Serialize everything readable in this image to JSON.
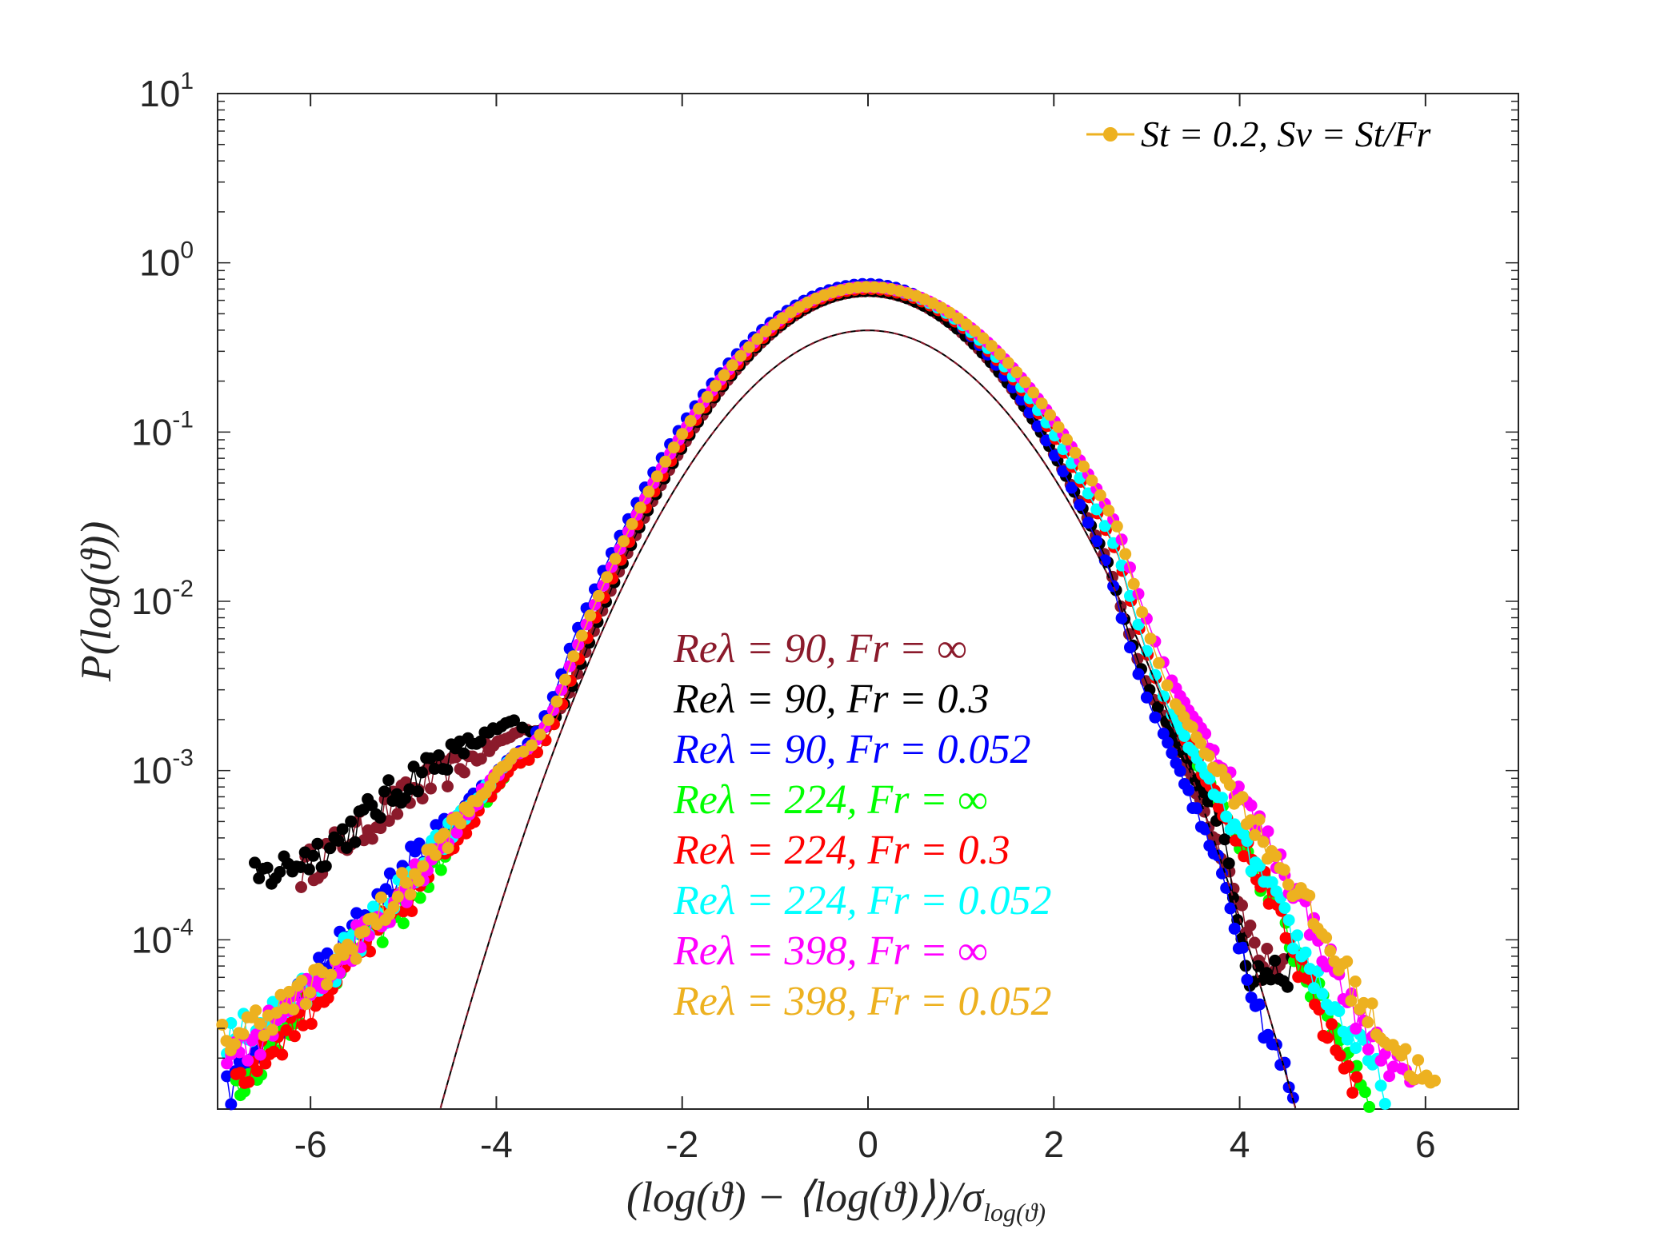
{
  "chart_data": {
    "type": "line",
    "title": "",
    "xlabel": "(log(ϑ) − ⟨log(ϑ)⟩)/σ",
    "xlabel_subscript": "log(ϑ)",
    "ylabel": "P(log(ϑ))",
    "xlim": [
      -7,
      7
    ],
    "ylim_log10": [
      -5,
      1
    ],
    "yscale": "log",
    "xticks": [
      -6,
      -4,
      -2,
      0,
      2,
      4,
      6
    ],
    "xtick_labels": [
      "-6",
      "-4",
      "-2",
      "0",
      "2",
      "4",
      "6"
    ],
    "yticks": [
      {
        "base": "10",
        "exp": "1",
        "value_log10": 1
      },
      {
        "base": "10",
        "exp": "0",
        "value_log10": 0
      },
      {
        "base": "10",
        "exp": "-1",
        "value_log10": -1
      },
      {
        "base": "10",
        "exp": "-2",
        "value_log10": -2
      },
      {
        "base": "10",
        "exp": "-3",
        "value_log10": -3
      },
      {
        "base": "10",
        "exp": "-4",
        "value_log10": -4
      }
    ],
    "top_legend": {
      "label": "St = 0.2, Sv = St/Fr",
      "color": "#EDB120"
    },
    "series": [
      {
        "name": "Reλ = 90, Fr = ∞",
        "color": "#8B1A2B",
        "peak": 0.68,
        "sigma_left": 0.97,
        "sigma_right": 0.95,
        "tail_left_log10": [
          [
            -3.7,
            -2.75
          ],
          [
            -4.8,
            -3.1
          ],
          [
            -5.6,
            -3.4
          ],
          [
            -6.1,
            -3.6
          ]
        ],
        "tail_right_log10": [
          [
            3.2,
            -2.7
          ],
          [
            3.9,
            -3.6
          ],
          [
            4.2,
            -4.1
          ],
          [
            4.5,
            -4.2
          ]
        ]
      },
      {
        "name": "Reλ = 90, Fr = 0.3",
        "color": "#000000",
        "peak": 0.68,
        "sigma_left": 0.97,
        "sigma_right": 0.95,
        "tail_left_log10": [
          [
            -3.8,
            -2.7
          ],
          [
            -4.8,
            -3.0
          ],
          [
            -5.8,
            -3.45
          ],
          [
            -6.6,
            -3.65
          ]
        ],
        "tail_right_log10": [
          [
            3.2,
            -2.7
          ],
          [
            3.8,
            -3.3
          ],
          [
            4.1,
            -4.2
          ],
          [
            4.6,
            -4.2
          ]
        ]
      },
      {
        "name": "Reλ = 90, Fr = 0.052",
        "color": "#0000FF",
        "peak": 0.75,
        "sigma_left": 1.02,
        "sigma_right": 0.93,
        "tail_left_log10": [
          [
            -3.8,
            -2.9
          ],
          [
            -5.0,
            -3.6
          ],
          [
            -6.0,
            -4.25
          ],
          [
            -6.9,
            -4.9
          ]
        ],
        "tail_right_log10": [
          [
            3.2,
            -2.8
          ],
          [
            3.8,
            -3.6
          ],
          [
            4.2,
            -4.4
          ],
          [
            4.6,
            -4.95
          ]
        ]
      },
      {
        "name": "Reλ = 224, Fr = ∞",
        "color": "#00FF00",
        "peak": 0.7,
        "sigma_left": 0.98,
        "sigma_right": 1.0,
        "tail_left_log10": [
          [
            -3.8,
            -2.95
          ],
          [
            -5.0,
            -3.8
          ],
          [
            -6.0,
            -4.3
          ],
          [
            -6.8,
            -4.9
          ]
        ],
        "tail_right_log10": [
          [
            3.3,
            -2.7
          ],
          [
            4.2,
            -3.6
          ],
          [
            4.8,
            -4.3
          ],
          [
            5.4,
            -4.9
          ]
        ]
      },
      {
        "name": "Reλ = 224, Fr = 0.3",
        "color": "#FF0000",
        "peak": 0.7,
        "sigma_left": 0.98,
        "sigma_right": 1.0,
        "tail_left_log10": [
          [
            -3.8,
            -2.95
          ],
          [
            -5.0,
            -3.8
          ],
          [
            -6.0,
            -4.4
          ],
          [
            -6.8,
            -4.85
          ]
        ],
        "tail_right_log10": [
          [
            3.3,
            -2.7
          ],
          [
            4.2,
            -3.6
          ],
          [
            4.9,
            -4.5
          ],
          [
            5.3,
            -4.9
          ]
        ]
      },
      {
        "name": "Reλ = 224, Fr = 0.052",
        "color": "#00FFFF",
        "peak": 0.72,
        "sigma_left": 1.0,
        "sigma_right": 1.0,
        "tail_left_log10": [
          [
            -3.8,
            -2.9
          ],
          [
            -5.0,
            -3.7
          ],
          [
            -6.0,
            -4.3
          ],
          [
            -6.9,
            -4.6
          ]
        ],
        "tail_right_log10": [
          [
            3.3,
            -2.7
          ],
          [
            4.3,
            -3.7
          ],
          [
            5.0,
            -4.4
          ],
          [
            5.6,
            -4.9
          ]
        ]
      },
      {
        "name": "Reλ = 398, Fr = ∞",
        "color": "#FF00FF",
        "peak": 0.72,
        "sigma_left": 1.0,
        "sigma_right": 1.05,
        "tail_left_log10": [
          [
            -3.8,
            -2.9
          ],
          [
            -5.0,
            -3.7
          ],
          [
            -6.0,
            -4.3
          ],
          [
            -6.9,
            -4.75
          ]
        ],
        "tail_right_log10": [
          [
            3.3,
            -2.5
          ],
          [
            4.5,
            -3.6
          ],
          [
            5.3,
            -4.5
          ],
          [
            5.9,
            -4.9
          ]
        ]
      },
      {
        "name": "Reλ = 398, Fr = 0.052",
        "color": "#EDB120",
        "peak": 0.72,
        "sigma_left": 1.0,
        "sigma_right": 1.05,
        "tail_left_log10": [
          [
            -3.8,
            -2.9
          ],
          [
            -5.0,
            -3.7
          ],
          [
            -6.0,
            -4.3
          ],
          [
            -6.95,
            -4.6
          ]
        ],
        "tail_right_log10": [
          [
            3.3,
            -2.6
          ],
          [
            4.5,
            -3.6
          ],
          [
            5.4,
            -4.45
          ],
          [
            6.1,
            -4.9
          ]
        ]
      }
    ],
    "reference_curves": [
      {
        "name": "Gaussian reference (solid)",
        "color": "#000000",
        "style": "solid",
        "peak": 0.399,
        "sigma": 1.0
      },
      {
        "name": "Gaussian reference (dashed)",
        "color": "#8B1A2B",
        "style": "dashed",
        "peak": 0.399,
        "sigma": 1.0
      }
    ]
  }
}
